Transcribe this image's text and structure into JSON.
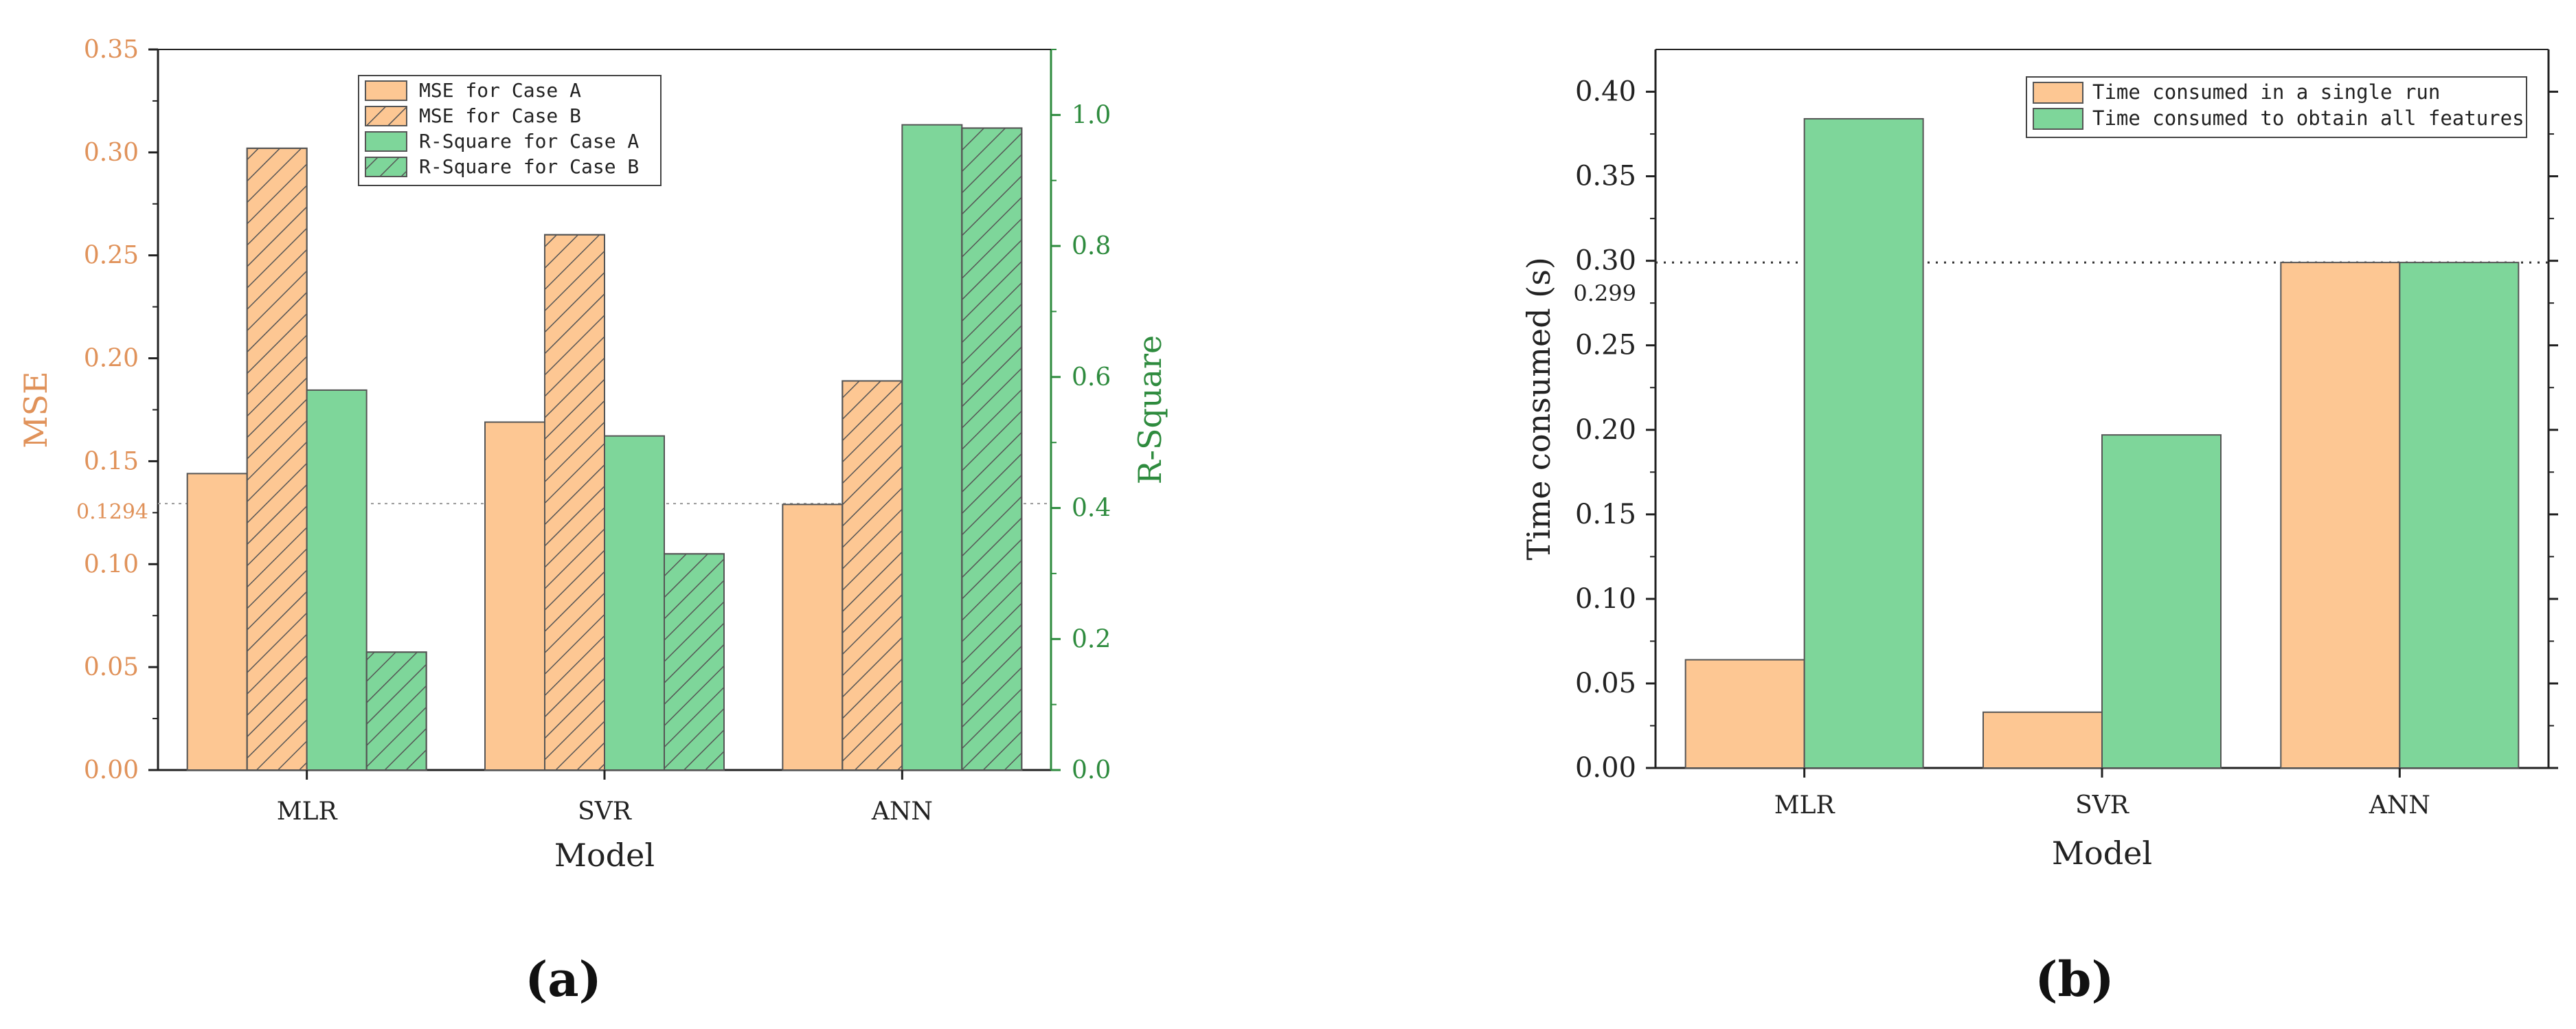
{
  "chart_data": [
    {
      "type": "bar",
      "panel_label": "(a)",
      "categories": [
        "MLR",
        "SVR",
        "ANN"
      ],
      "xlabel": "Model",
      "ylabel": "MSE",
      "ylabel_right": "R-Square",
      "ylim": [
        0,
        0.35
      ],
      "ylim_right": [
        0,
        1.1
      ],
      "yticks": [
        "0.00",
        "0.05",
        "0.10",
        "0.15",
        "0.20",
        "0.25",
        "0.30",
        "0.35"
      ],
      "yticks_right": [
        "0.0",
        "0.2",
        "0.4",
        "0.6",
        "0.8",
        "1.0"
      ],
      "reference_line": {
        "value": 0.1294,
        "label": "0.1294"
      },
      "legend_position": "top-center",
      "series": [
        {
          "name": "MSE for Case A",
          "axis": "left",
          "pattern": "solid",
          "color": "#FDC793",
          "values": [
            0.144,
            0.169,
            0.129
          ]
        },
        {
          "name": "MSE for Case B",
          "axis": "left",
          "pattern": "hatch",
          "color": "#FDC793",
          "values": [
            0.302,
            0.26,
            0.189
          ]
        },
        {
          "name": "R-Square for Case A",
          "axis": "right",
          "pattern": "solid",
          "color": "#7ED69A",
          "values": [
            0.58,
            0.51,
            0.985
          ]
        },
        {
          "name": "R-Square for Case B",
          "axis": "right",
          "pattern": "hatch",
          "color": "#7ED69A",
          "values": [
            0.18,
            0.33,
            0.98
          ]
        }
      ],
      "colors": {
        "left_axis": "#E0925A",
        "right_axis": "#2E8B3E"
      }
    },
    {
      "type": "bar",
      "panel_label": "(b)",
      "categories": [
        "MLR",
        "SVR",
        "ANN"
      ],
      "xlabel": "Model",
      "ylabel": "Time consumed (s)",
      "ylim": [
        0,
        0.425
      ],
      "yticks": [
        "0.00",
        "0.05",
        "0.10",
        "0.15",
        "0.20",
        "0.25",
        "0.30",
        "0.35",
        "0.40"
      ],
      "reference_line": {
        "value": 0.299,
        "label": "0.299"
      },
      "legend_position": "top-right",
      "series": [
        {
          "name": "Time consumed in a single run",
          "color": "#FDC793",
          "values": [
            0.064,
            0.033,
            0.299
          ]
        },
        {
          "name": "Time consumed to obtain all features",
          "color": "#7ED69A",
          "values": [
            0.384,
            0.197,
            0.299
          ]
        }
      ]
    }
  ]
}
